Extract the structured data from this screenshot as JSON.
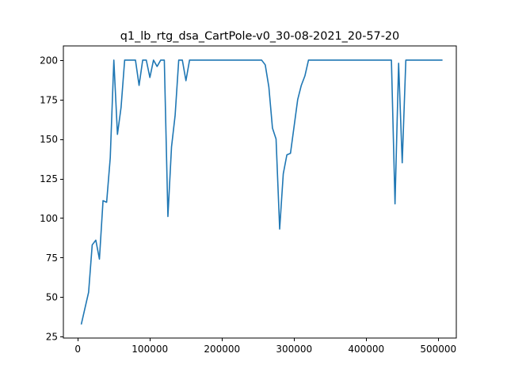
{
  "chart_data": {
    "type": "line",
    "title": "q1_lb_rtg_dsa_CartPole-v0_30-08-2021_20-57-20",
    "xlabel": "",
    "ylabel": "",
    "xlim": [
      -20000,
      525000
    ],
    "ylim": [
      24,
      209
    ],
    "xticks": [
      0,
      100000,
      200000,
      300000,
      400000,
      500000
    ],
    "yticks": [
      25,
      50,
      75,
      100,
      125,
      150,
      175,
      200
    ],
    "grid": false,
    "series": [
      {
        "name": "",
        "color": "#1f77b4",
        "x": [
          5000,
          10000,
          15000,
          20000,
          25000,
          30000,
          35000,
          40000,
          45000,
          50000,
          55000,
          60000,
          65000,
          70000,
          75000,
          80000,
          85000,
          90000,
          95000,
          100000,
          105000,
          110000,
          115000,
          120000,
          125000,
          130000,
          135000,
          140000,
          145000,
          150000,
          155000,
          160000,
          165000,
          170000,
          175000,
          180000,
          185000,
          190000,
          195000,
          200000,
          205000,
          210000,
          215000,
          220000,
          225000,
          230000,
          235000,
          240000,
          245000,
          250000,
          255000,
          260000,
          265000,
          270000,
          275000,
          280000,
          285000,
          290000,
          295000,
          300000,
          305000,
          310000,
          315000,
          320000,
          325000,
          330000,
          335000,
          340000,
          345000,
          350000,
          355000,
          360000,
          365000,
          370000,
          375000,
          380000,
          385000,
          390000,
          395000,
          400000,
          405000,
          410000,
          415000,
          420000,
          425000,
          430000,
          435000,
          440000,
          445000,
          450000,
          455000,
          460000,
          465000,
          470000,
          475000,
          480000,
          485000,
          490000,
          495000,
          500000,
          505000
        ],
        "y": [
          33,
          43,
          53,
          83,
          86,
          74,
          111,
          110,
          138,
          200,
          153,
          170,
          200,
          200,
          200,
          200,
          184,
          200,
          200,
          189,
          200,
          196,
          200,
          200,
          101,
          145,
          165,
          200,
          200,
          187,
          200,
          200,
          200,
          200,
          200,
          200,
          200,
          200,
          200,
          200,
          200,
          200,
          200,
          200,
          200,
          200,
          200,
          200,
          200,
          200,
          200,
          197,
          183,
          157,
          150,
          93,
          128,
          140,
          141,
          158,
          175,
          184,
          190,
          200,
          200,
          200,
          200,
          200,
          200,
          200,
          200,
          200,
          200,
          200,
          200,
          200,
          200,
          200,
          200,
          200,
          200,
          200,
          200,
          200,
          200,
          200,
          200,
          109,
          198,
          135,
          200,
          200,
          200,
          200,
          200,
          200,
          200,
          200,
          200,
          200,
          200
        ]
      }
    ]
  }
}
